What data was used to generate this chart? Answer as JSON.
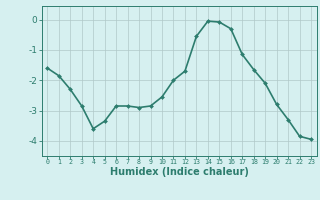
{
  "x": [
    0,
    1,
    2,
    3,
    4,
    5,
    6,
    7,
    8,
    9,
    10,
    11,
    12,
    13,
    14,
    15,
    16,
    17,
    18,
    19,
    20,
    21,
    22,
    23
  ],
  "y": [
    -1.6,
    -1.85,
    -2.3,
    -2.85,
    -3.6,
    -3.35,
    -2.85,
    -2.85,
    -2.9,
    -2.85,
    -2.55,
    -2.0,
    -1.7,
    -0.55,
    -0.05,
    -0.08,
    -0.3,
    -1.15,
    -1.65,
    -2.1,
    -2.8,
    -3.3,
    -3.85,
    -3.95
  ],
  "line_color": "#2d7d6e",
  "marker": "D",
  "marker_size": 2.0,
  "bg_color": "#d6f0f0",
  "grid_color": "#b0c8c8",
  "axis_color": "#2d7d6e",
  "xlabel": "Humidex (Indice chaleur)",
  "xlabel_fontsize": 7,
  "yticks": [
    0,
    -1,
    -2,
    -3,
    -4
  ],
  "ylim": [
    -4.5,
    0.45
  ],
  "xlim": [
    -0.5,
    23.5
  ],
  "tick_label_color": "#2d7d6e",
  "line_width": 1.2,
  "ytick_fontsize": 6.5,
  "xtick_fontsize": 4.8
}
